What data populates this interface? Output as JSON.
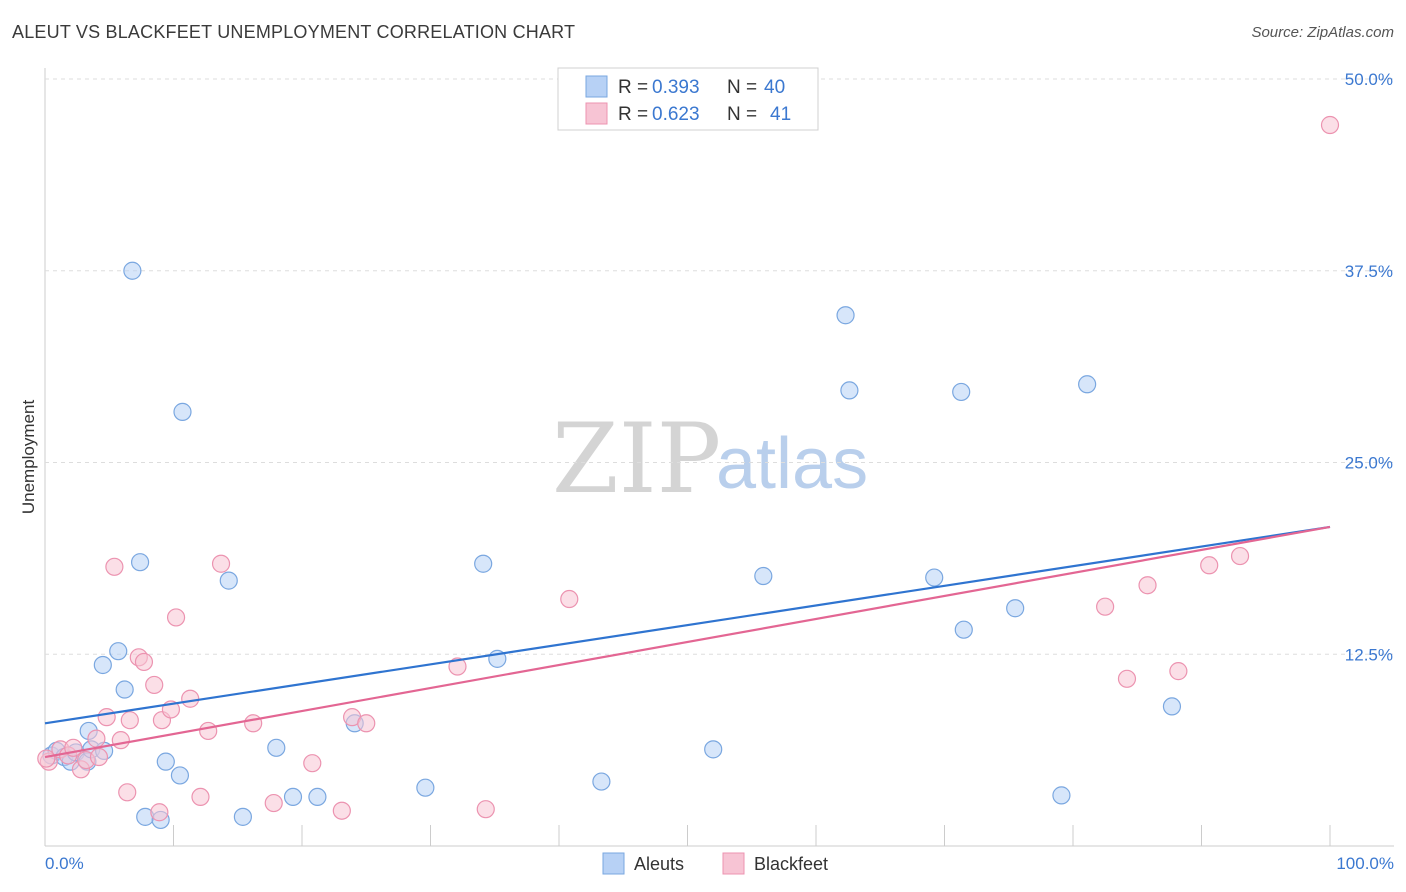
{
  "title": "ALEUT VS BLACKFEET UNEMPLOYMENT CORRELATION CHART",
  "source": "Source: ZipAtlas.com",
  "watermark": {
    "zip": "ZIP",
    "atlas": "atlas"
  },
  "colors": {
    "aleut_fill": "#b7d1f5",
    "aleut_stroke": "#7aa7e0",
    "aleut_line": "#2f74d0",
    "blackfeet_fill": "#f7c4d4",
    "blackfeet_stroke": "#ec93b0",
    "blackfeet_line": "#e36693",
    "tick_label": "#3b78d0",
    "grid": "#dddddd"
  },
  "legend": {
    "rows": [
      {
        "r_label": "R =",
        "r_value": "0.393",
        "n_label": "N =",
        "n_value": "40"
      },
      {
        "r_label": "R =",
        "r_value": "0.623",
        "n_label": "N =",
        "n_value": "41"
      }
    ]
  },
  "chart_data": {
    "type": "scatter",
    "title": "ALEUT VS BLACKFEET UNEMPLOYMENT CORRELATION CHART",
    "xlabel": "",
    "ylabel": "Unemployment",
    "xlim": [
      0,
      100
    ],
    "ylim": [
      0,
      50
    ],
    "x_tick_labels": [
      "0.0%",
      "100.0%"
    ],
    "y_ticks": [
      12.5,
      25.0,
      37.5,
      50.0
    ],
    "y_tick_labels": [
      "12.5%",
      "25.0%",
      "37.5%",
      "50.0%"
    ],
    "legend_position": "top-center",
    "series": [
      {
        "name": "Aleuts",
        "r": 0.393,
        "n": 40,
        "trend": {
          "x": [
            0,
            100
          ],
          "y": [
            8.0,
            20.8
          ]
        },
        "points": [
          {
            "x": 0.5,
            "y": 5.9
          },
          {
            "x": 0.9,
            "y": 6.2
          },
          {
            "x": 1.5,
            "y": 5.8
          },
          {
            "x": 2.0,
            "y": 5.5
          },
          {
            "x": 2.4,
            "y": 6.1
          },
          {
            "x": 3.3,
            "y": 5.5
          },
          {
            "x": 3.4,
            "y": 7.5
          },
          {
            "x": 3.6,
            "y": 6.3
          },
          {
            "x": 4.6,
            "y": 6.2
          },
          {
            "x": 4.5,
            "y": 11.8
          },
          {
            "x": 5.7,
            "y": 12.7
          },
          {
            "x": 6.2,
            "y": 10.2
          },
          {
            "x": 6.8,
            "y": 37.5
          },
          {
            "x": 7.4,
            "y": 18.5
          },
          {
            "x": 7.8,
            "y": 1.9
          },
          {
            "x": 9.0,
            "y": 1.7
          },
          {
            "x": 9.4,
            "y": 5.5
          },
          {
            "x": 10.5,
            "y": 4.6
          },
          {
            "x": 10.7,
            "y": 28.3
          },
          {
            "x": 14.3,
            "y": 17.3
          },
          {
            "x": 15.4,
            "y": 1.9
          },
          {
            "x": 18.0,
            "y": 6.4
          },
          {
            "x": 19.3,
            "y": 3.2
          },
          {
            "x": 21.2,
            "y": 3.2
          },
          {
            "x": 24.1,
            "y": 8.0
          },
          {
            "x": 29.6,
            "y": 3.8
          },
          {
            "x": 34.1,
            "y": 18.4
          },
          {
            "x": 35.2,
            "y": 12.2
          },
          {
            "x": 43.3,
            "y": 4.2
          },
          {
            "x": 52.0,
            "y": 6.3
          },
          {
            "x": 55.9,
            "y": 17.6
          },
          {
            "x": 62.3,
            "y": 34.6
          },
          {
            "x": 62.6,
            "y": 29.7
          },
          {
            "x": 69.2,
            "y": 17.5
          },
          {
            "x": 71.3,
            "y": 29.6
          },
          {
            "x": 71.5,
            "y": 14.1
          },
          {
            "x": 75.5,
            "y": 15.5
          },
          {
            "x": 79.1,
            "y": 3.3
          },
          {
            "x": 81.1,
            "y": 30.1
          },
          {
            "x": 87.7,
            "y": 9.1
          }
        ]
      },
      {
        "name": "Blackfeet",
        "r": 0.623,
        "n": 41,
        "trend": {
          "x": [
            0,
            100
          ],
          "y": [
            5.8,
            20.8
          ]
        },
        "points": [
          {
            "x": 0.3,
            "y": 5.5
          },
          {
            "x": 1.2,
            "y": 6.3
          },
          {
            "x": 1.8,
            "y": 5.9
          },
          {
            "x": 2.2,
            "y": 6.4
          },
          {
            "x": 2.8,
            "y": 5.0
          },
          {
            "x": 3.2,
            "y": 5.6
          },
          {
            "x": 4.0,
            "y": 7.0
          },
          {
            "x": 4.2,
            "y": 5.8
          },
          {
            "x": 4.8,
            "y": 8.4
          },
          {
            "x": 5.4,
            "y": 18.2
          },
          {
            "x": 5.9,
            "y": 6.9
          },
          {
            "x": 6.4,
            "y": 3.5
          },
          {
            "x": 6.6,
            "y": 8.2
          },
          {
            "x": 7.3,
            "y": 12.3
          },
          {
            "x": 7.7,
            "y": 12.0
          },
          {
            "x": 8.5,
            "y": 10.5
          },
          {
            "x": 8.9,
            "y": 2.2
          },
          {
            "x": 9.1,
            "y": 8.2
          },
          {
            "x": 9.8,
            "y": 8.9
          },
          {
            "x": 10.2,
            "y": 14.9
          },
          {
            "x": 11.3,
            "y": 9.6
          },
          {
            "x": 12.1,
            "y": 3.2
          },
          {
            "x": 12.7,
            "y": 7.5
          },
          {
            "x": 13.7,
            "y": 18.4
          },
          {
            "x": 16.2,
            "y": 8.0
          },
          {
            "x": 17.8,
            "y": 2.8
          },
          {
            "x": 20.8,
            "y": 5.4
          },
          {
            "x": 23.1,
            "y": 2.3
          },
          {
            "x": 23.9,
            "y": 8.4
          },
          {
            "x": 25.0,
            "y": 8.0
          },
          {
            "x": 32.1,
            "y": 11.7
          },
          {
            "x": 34.3,
            "y": 2.4
          },
          {
            "x": 40.8,
            "y": 16.1
          },
          {
            "x": 82.5,
            "y": 15.6
          },
          {
            "x": 84.2,
            "y": 10.9
          },
          {
            "x": 85.8,
            "y": 17.0
          },
          {
            "x": 88.2,
            "y": 11.4
          },
          {
            "x": 90.6,
            "y": 18.3
          },
          {
            "x": 93.0,
            "y": 18.9
          },
          {
            "x": 100.0,
            "y": 47.0
          },
          {
            "x": 0.1,
            "y": 5.7
          }
        ]
      }
    ]
  },
  "bottom_legend": {
    "items": [
      "Aleuts",
      "Blackfeet"
    ]
  }
}
